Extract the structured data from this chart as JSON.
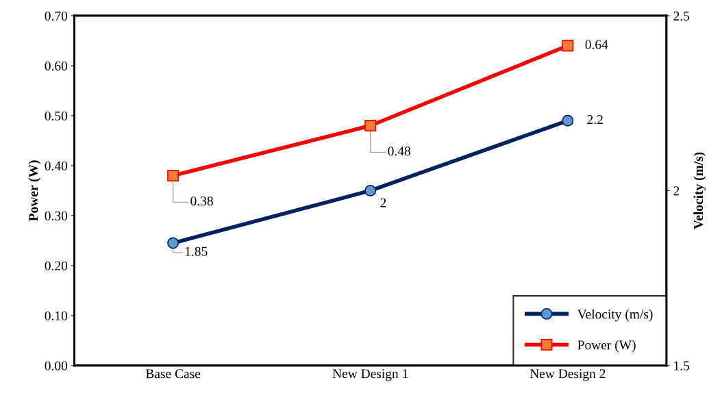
{
  "chart_data": {
    "type": "line",
    "ylabel": "Power (W)",
    "y2label": "Velocity (m/s)",
    "categories": [
      "Base Case",
      "New Design 1",
      "New Design 2"
    ],
    "series": [
      {
        "name": "Velocity (m/s)",
        "color": "#002060",
        "colors": [
          "#5b9bd5",
          "#5b9bd5",
          "#5b9bd5"
        ],
        "marker": "circle",
        "axis": "y2",
        "values": [
          1.85,
          2,
          2.2
        ]
      },
      {
        "name": "Power (W)",
        "color": "#ff0000",
        "colors": [
          "#ed7d31",
          "#ed7d31",
          "#ed7d31"
        ],
        "marker": "square",
        "values": [
          0.38,
          0.48,
          0.64
        ]
      }
    ],
    "ylim": [
      0,
      0.7
    ],
    "yticks": [
      {
        "value": 0,
        "label": "0.00"
      },
      {
        "value": 0.1,
        "label": "0.10"
      },
      {
        "value": 0.2,
        "label": "0.20"
      },
      {
        "value": 0.3,
        "label": "0.30"
      },
      {
        "value": 0.4,
        "label": "0.40"
      },
      {
        "value": 0.5,
        "label": "0.50"
      },
      {
        "value": 0.6,
        "label": "0.60"
      },
      {
        "value": 0.7,
        "label": "0.70"
      }
    ],
    "y2lim": [
      1.5,
      2.5
    ],
    "y2ticks": [
      1.5,
      2,
      2.5
    ],
    "data_labels": true,
    "grid": false,
    "legend": "bottom right",
    "line_style": "solid"
  }
}
